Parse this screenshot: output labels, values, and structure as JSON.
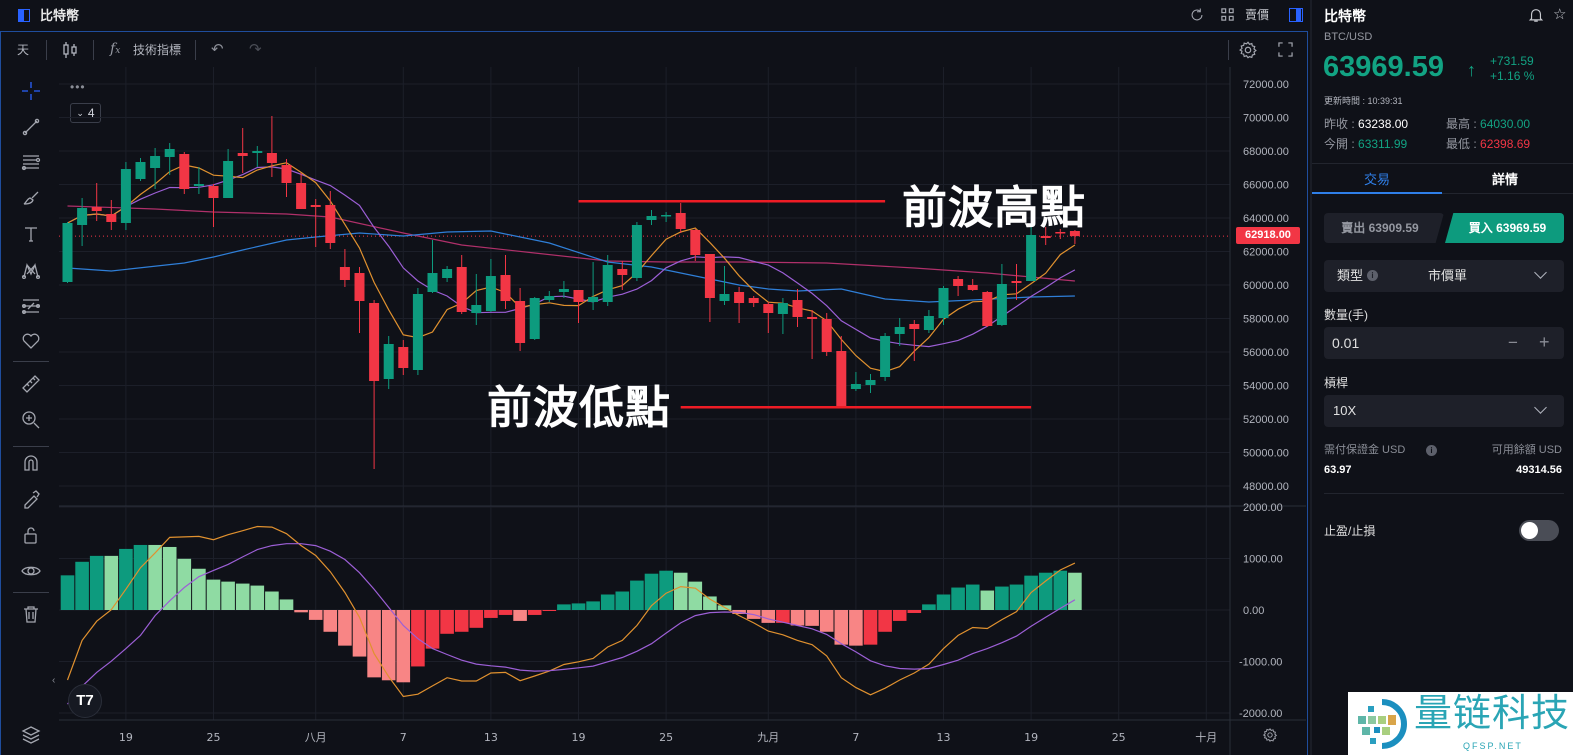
{
  "header": {
    "title": "比特幣",
    "sell_price_label": "賣價",
    "icons": [
      "panel-icon",
      "refresh-icon",
      "grid-icon",
      "layout-toggle-icon"
    ]
  },
  "toolbar": {
    "interval": "天",
    "indicators": "技術指標",
    "icons": [
      "candles-icon",
      "fx-icon",
      "undo-icon",
      "redo-icon",
      "gear-icon",
      "fullscreen-icon"
    ]
  },
  "left_tools": [
    "crosshair-icon",
    "trend-line-icon",
    "fib-lines-icon",
    "brush-icon",
    "text-icon",
    "pattern-icon",
    "forecast-icon",
    "heart-icon",
    "ruler-icon",
    "zoom-in-icon",
    "magnet-icon",
    "lock-drawing-icon",
    "unlock-icon",
    "eye-icon",
    "trash-icon",
    "layers-icon"
  ],
  "legend": {
    "more": "•••",
    "collapse_count": "4"
  },
  "annotations": {
    "high_text": "前波高點",
    "low_text": "前波低點"
  },
  "colors": {
    "up": "#0d9b7e",
    "down": "#f23645",
    "up_light": "#8fdba3",
    "down_light": "#f88585",
    "ma_fast": "#e0912f",
    "ma_mid": "#9c5fd6",
    "ma_blue": "#2f7fd8",
    "ma_magenta": "#b0306a",
    "accent": "#2962ff",
    "annotation": "#ee1c25"
  },
  "chart_data": {
    "type": "candlestick",
    "price_ticks": [
      72000,
      70000,
      68000,
      66000,
      64000,
      62000,
      60000,
      58000,
      56000,
      54000,
      52000,
      50000,
      48000
    ],
    "macd_ticks": [
      2000,
      1000,
      0,
      -1000,
      -2000
    ],
    "x_ticks": [
      {
        "t": "07-19",
        "label": "19"
      },
      {
        "t": "07-25",
        "label": "25"
      },
      {
        "t": "08-01",
        "label": "八月"
      },
      {
        "t": "08-07",
        "label": "7"
      },
      {
        "t": "08-13",
        "label": "13"
      },
      {
        "t": "08-19",
        "label": "19"
      },
      {
        "t": "08-25",
        "label": "25"
      },
      {
        "t": "09-01",
        "label": "九月"
      },
      {
        "t": "09-07",
        "label": "7"
      },
      {
        "t": "09-13",
        "label": "13"
      },
      {
        "t": "09-19",
        "label": "19"
      },
      {
        "t": "09-25",
        "label": "25"
      },
      {
        "t": "10-01",
        "label": "十月"
      }
    ],
    "last_price": "62918.00",
    "candles_ohlc": [
      [
        "07-15",
        60179,
        63762,
        60119,
        63702
      ],
      [
        "07-16",
        63582,
        65194,
        62329,
        64597
      ],
      [
        "07-17",
        64657,
        66090,
        63821,
        64418
      ],
      [
        "07-18",
        64239,
        65075,
        63284,
        63762
      ],
      [
        "07-19",
        63702,
        67343,
        63284,
        66925
      ],
      [
        "07-20",
        66328,
        67582,
        66209,
        67343
      ],
      [
        "07-21",
        66985,
        68179,
        65731,
        67702
      ],
      [
        "07-22",
        67642,
        68478,
        66567,
        68119
      ],
      [
        "07-23",
        67821,
        67940,
        65433,
        65731
      ],
      [
        "07-24",
        65911,
        67045,
        65433,
        66030
      ],
      [
        "07-25",
        65911,
        66030,
        63463,
        65194
      ],
      [
        "07-26",
        65194,
        68119,
        65194,
        67403
      ],
      [
        "07-27",
        67881,
        69373,
        66687,
        67702
      ],
      [
        "07-28",
        67881,
        68299,
        67045,
        68000
      ],
      [
        "07-29",
        67881,
        70090,
        66448,
        67284
      ],
      [
        "07-30",
        67164,
        67522,
        65254,
        66090
      ],
      [
        "07-31",
        66090,
        66687,
        64537,
        64537
      ],
      [
        "08-01",
        64776,
        65134,
        62269,
        64657
      ],
      [
        "08-02",
        64776,
        65612,
        62149,
        62508
      ],
      [
        "08-03",
        61075,
        62149,
        59881,
        60299
      ],
      [
        "08-04",
        60716,
        61075,
        57134,
        59045
      ],
      [
        "08-05",
        58925,
        59104,
        49015,
        54269
      ],
      [
        "08-06",
        54388,
        56955,
        53791,
        56478
      ],
      [
        "08-07",
        56299,
        56716,
        54627,
        55045
      ],
      [
        "08-08",
        54925,
        59821,
        54627,
        59463
      ],
      [
        "08-09",
        59582,
        62687,
        59522,
        60716
      ],
      [
        "08-10",
        60418,
        61134,
        60179,
        60955
      ],
      [
        "08-11",
        61075,
        61791,
        58269,
        58388
      ],
      [
        "08-12",
        58328,
        60657,
        57612,
        58806
      ],
      [
        "08-13",
        58448,
        61552,
        58388,
        60537
      ],
      [
        "08-14",
        60597,
        61791,
        58567,
        59045
      ],
      [
        "08-15",
        59045,
        59821,
        56060,
        56537
      ],
      [
        "08-16",
        56776,
        59284,
        56716,
        59224
      ],
      [
        "08-17",
        59104,
        59642,
        58985,
        59343
      ],
      [
        "08-18",
        59582,
        60239,
        59224,
        59761
      ],
      [
        "08-19",
        59702,
        59702,
        57731,
        58985
      ],
      [
        "08-20",
        58985,
        61373,
        58508,
        59284
      ],
      [
        "08-21",
        58985,
        61791,
        58746,
        61194
      ],
      [
        "08-22",
        60955,
        61433,
        59702,
        60597
      ],
      [
        "08-23",
        60418,
        63761,
        60239,
        63582
      ],
      [
        "08-24",
        63881,
        64478,
        63582,
        64119
      ],
      [
        "08-25",
        64119,
        64358,
        63761,
        64179
      ],
      [
        "08-26",
        64299,
        64896,
        63104,
        63343
      ],
      [
        "08-27",
        63284,
        63343,
        61433,
        61791
      ],
      [
        "08-28",
        61851,
        61851,
        57791,
        59224
      ],
      [
        "08-29",
        59045,
        61134,
        58806,
        59463
      ],
      [
        "08-30",
        59582,
        59881,
        57731,
        58925
      ],
      [
        "08-31",
        59224,
        59343,
        58687,
        58925
      ],
      [
        "09-01",
        58866,
        58985,
        57134,
        58328
      ],
      [
        "09-02",
        58269,
        59224,
        57075,
        58925
      ],
      [
        "09-03",
        59104,
        59761,
        57493,
        58090
      ],
      [
        "09-04",
        58090,
        58508,
        55582,
        57970
      ],
      [
        "09-05",
        57970,
        58328,
        55761,
        56000
      ],
      [
        "09-06",
        56060,
        56955,
        52776,
        52776
      ],
      [
        "09-07",
        53791,
        54806,
        53672,
        54090
      ],
      [
        "09-08",
        54030,
        54687,
        53552,
        54328
      ],
      [
        "09-09",
        54507,
        57134,
        54269,
        56955
      ],
      [
        "09-10",
        57075,
        58030,
        56358,
        57493
      ],
      [
        "09-11",
        57672,
        57910,
        55463,
        57373
      ],
      [
        "09-12",
        57313,
        58508,
        57134,
        58149
      ],
      [
        "09-13",
        58030,
        59940,
        57612,
        59821
      ],
      [
        "09-14",
        60358,
        60537,
        59343,
        59940
      ],
      [
        "09-15",
        60000,
        60358,
        59642,
        59702
      ],
      [
        "09-16",
        59582,
        59642,
        57493,
        57552
      ],
      [
        "09-17",
        57612,
        61254,
        57552,
        60060
      ],
      [
        "09-18",
        60239,
        61254,
        59104,
        60119
      ],
      [
        "09-19",
        60239,
        63463,
        60239,
        62985
      ],
      [
        "09-20",
        62925,
        63463,
        62388,
        62806
      ],
      [
        "09-21",
        63164,
        63343,
        62746,
        63104
      ],
      [
        "09-22",
        63224,
        63284,
        62448,
        62918
      ]
    ],
    "ma_blue": [
      [
        "07-15",
        61015
      ],
      [
        "07-18",
        60836
      ],
      [
        "07-23",
        61313
      ],
      [
        "07-25",
        61672
      ],
      [
        "07-27",
        62090
      ],
      [
        "07-30",
        62687
      ],
      [
        "08-01",
        62866
      ],
      [
        "08-04",
        63104
      ],
      [
        "08-07",
        62925
      ],
      [
        "08-10",
        63164
      ],
      [
        "08-13",
        63224
      ],
      [
        "08-17",
        62507
      ],
      [
        "08-21",
        61373
      ],
      [
        "08-24",
        61075
      ],
      [
        "08-30",
        60000
      ],
      [
        "09-01",
        59761
      ],
      [
        "09-03",
        59642
      ],
      [
        "09-06",
        59761
      ],
      [
        "09-09",
        59164
      ],
      [
        "09-12",
        58985
      ],
      [
        "09-15",
        59104
      ],
      [
        "09-19",
        59284
      ],
      [
        "09-22",
        59343
      ]
    ],
    "ma_magenta": [
      [
        "07-15",
        64716
      ],
      [
        "07-21",
        64537
      ],
      [
        "07-25",
        64358
      ],
      [
        "07-30",
        64239
      ],
      [
        "08-02",
        64060
      ],
      [
        "08-07",
        63104
      ],
      [
        "08-11",
        62388
      ],
      [
        "08-16",
        61910
      ],
      [
        "08-21",
        61433
      ],
      [
        "08-25",
        61373
      ],
      [
        "08-30",
        61373
      ],
      [
        "09-05",
        61313
      ],
      [
        "09-11",
        61015
      ],
      [
        "09-16",
        60716
      ],
      [
        "09-22",
        60239
      ]
    ],
    "macd_hist": [
      673,
      936,
      1051,
      1051,
      1186,
      1263,
      1263,
      1224,
      994,
      801,
      590,
      551,
      513,
      474,
      359,
      205,
      -45,
      -192,
      -423,
      -692,
      -904,
      -1308,
      -1365,
      -1404,
      -1096,
      -750,
      -462,
      -423,
      -346,
      -154,
      -96,
      -212,
      -96,
      -10,
      109,
      128,
      167,
      301,
      359,
      571,
      705,
      763,
      724,
      551,
      263,
      90,
      -77,
      -173,
      -250,
      -250,
      -301,
      -308,
      -423,
      -673,
      -692,
      -673,
      -423,
      -212,
      -58,
      109,
      301,
      436,
      494,
      378,
      455,
      494,
      667,
      724,
      763,
      724
    ],
    "macd_dif": [
      -1359,
      -590,
      -218,
      6,
      404,
      821,
      1109,
      1410,
      1420,
      1429,
      1365,
      1462,
      1540,
      1622,
      1609,
      1481,
      1250,
      1058,
      744,
      340,
      -141,
      -846,
      -1295,
      -1679,
      -1635,
      -1474,
      -1314,
      -1378,
      -1378,
      -1224,
      -1212,
      -1372,
      -1282,
      -1186,
      -1058,
      -1006,
      -942,
      -718,
      -590,
      -301,
      83,
      327,
      455,
      423,
      212,
      51,
      -109,
      -250,
      -410,
      -481,
      -590,
      -673,
      -891,
      -1314,
      -1506,
      -1647,
      -1519,
      -1359,
      -1224,
      -1051,
      -750,
      -494,
      -340,
      -359,
      -186,
      -32,
      340,
      564,
      776,
      910
    ],
    "macd_dea": [
      -1827,
      -1481,
      -1212,
      -994,
      -750,
      -494,
      -109,
      179,
      436,
      647,
      769,
      885,
      1032,
      1173,
      1250,
      1288,
      1288,
      1250,
      1141,
      981,
      724,
      404,
      51,
      -301,
      -558,
      -750,
      -865,
      -974,
      -1051,
      -1083,
      -1109,
      -1167,
      -1186,
      -1179,
      -1154,
      -1122,
      -1090,
      -1006,
      -923,
      -801,
      -654,
      -449,
      -250,
      -109,
      -51,
      -38,
      -45,
      -90,
      -173,
      -237,
      -301,
      -365,
      -474,
      -654,
      -814,
      -987,
      -1083,
      -1135,
      -1147,
      -1135,
      -1058,
      -974,
      -846,
      -750,
      -635,
      -506,
      -314,
      -141,
      32,
      199
    ],
    "annotation_lines": [
      {
        "price": 65000,
        "from": "08-19",
        "to": "09-09"
      },
      {
        "price": 52700,
        "from": "08-26",
        "to": "09-19"
      }
    ]
  },
  "panel": {
    "title": "比特幣",
    "symbol": "BTC/USD",
    "price": "63969.59",
    "arrow": "↑",
    "change": "+731.59",
    "change_pct": "+1.16 %",
    "update_time": "更新時間 : 10:39:31",
    "stats": [
      {
        "label": "昨收 : ",
        "value": "63238.00",
        "color": "#ffffff"
      },
      {
        "label": "最高 : ",
        "value": "64030.00",
        "color": "#12a383"
      },
      {
        "label": "今開 : ",
        "value": "63311.99",
        "color": "#12a383"
      },
      {
        "label": "最低 : ",
        "value": "62398.69",
        "color": "#f23645"
      }
    ],
    "tabs": [
      "交易",
      "詳情"
    ],
    "sell_button": "賣出 63909.59",
    "buy_button": "買入 63969.59",
    "type_label": "類型",
    "type_value": "市價單",
    "qty_label": "數量(手)",
    "qty_value": "0.01",
    "minus": "−",
    "plus": "+",
    "leverage_label": "槓桿",
    "leverage_value": "10X",
    "margin_label": "需付保證金 USD",
    "margin_value": "63.97",
    "balance_label": "可用餘額 USD",
    "balance_value": "49314.56",
    "tpsl_label": "止盈/止損",
    "tpsl_on": false
  },
  "watermark": {
    "name": "量链科技",
    "site": "QFSP.NET"
  }
}
